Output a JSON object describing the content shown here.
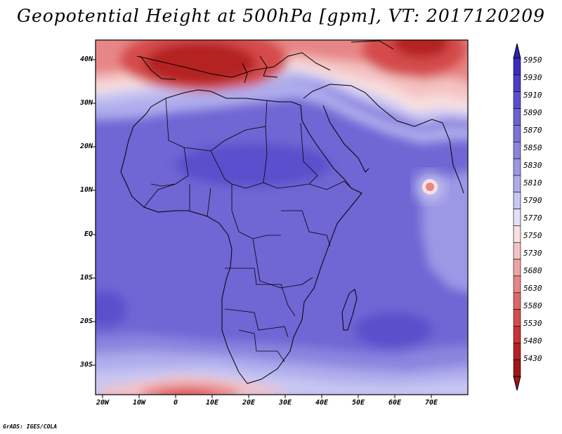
{
  "title": "Geopotential Height at 500hPa [gpm], VT: 2017120209",
  "credit": "GrADS: IGES/COLA",
  "map": {
    "lon_range": [
      -22,
      80
    ],
    "lat_range": [
      -37,
      45
    ],
    "y_axis_labels": [
      "40N",
      "30N",
      "20N",
      "10N",
      "EQ",
      "10S",
      "20S",
      "30S"
    ],
    "x_axis_labels": [
      "20W",
      "10W",
      "0",
      "10E",
      "20E",
      "30E",
      "40E",
      "50E",
      "60E",
      "70E"
    ]
  },
  "colorbar": {
    "levels": [
      "5950",
      "5930",
      "5910",
      "5890",
      "5870",
      "5850",
      "5830",
      "5810",
      "5790",
      "5770",
      "5750",
      "5730",
      "5680",
      "5630",
      "5580",
      "5530",
      "5480",
      "5430"
    ],
    "colors": [
      "#3a2eb8",
      "#4a3fc4",
      "#5a50cc",
      "#6a62d2",
      "#7a74d8",
      "#8a86df",
      "#9c98e6",
      "#afacec",
      "#c8c6f3",
      "#e2e0f8",
      "#f8e0e0",
      "#f4c2c2",
      "#eea4a4",
      "#e78686",
      "#de6868",
      "#d54c4c",
      "#c83434",
      "#b42121",
      "#9e1616"
    ]
  }
}
